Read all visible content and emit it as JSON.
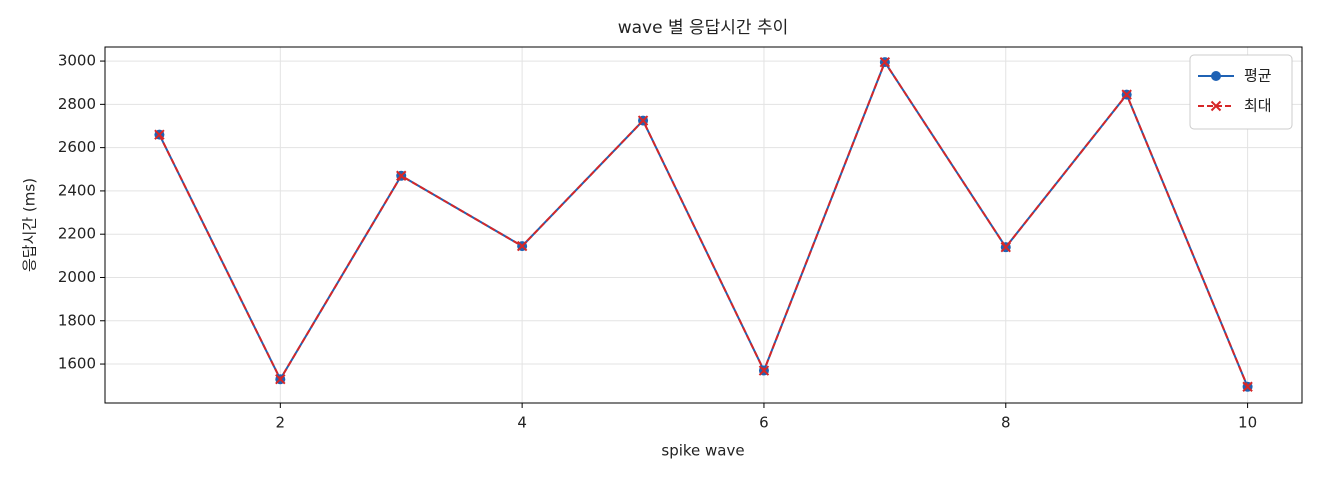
{
  "chart_data": {
    "type": "line",
    "title": "wave 별 응답시간 추이",
    "x_label": "spike wave",
    "y_label": "응답시간 (ms)",
    "x": [
      1,
      2,
      3,
      4,
      5,
      6,
      7,
      8,
      9,
      10
    ],
    "series": [
      {
        "name": "평균",
        "color": "#1f62b4",
        "marker": "circle",
        "dash": false,
        "values": [
          2660,
          1530,
          2470,
          2145,
          2725,
          1570,
          2995,
          2140,
          2845,
          1495
        ]
      },
      {
        "name": "최대",
        "color": "#d62728",
        "marker": "x",
        "dash": true,
        "values": [
          2660,
          1530,
          2470,
          2145,
          2725,
          1570,
          2995,
          2140,
          2845,
          1495
        ]
      }
    ],
    "xlim": [
      0.55,
      10.45
    ],
    "ylim": [
      1420,
      3065
    ],
    "xticks": [
      2,
      4,
      6,
      8,
      10
    ],
    "yticks": [
      1600,
      1800,
      2000,
      2200,
      2400,
      2600,
      2800,
      3000
    ],
    "grid": true,
    "legend": "upper right"
  }
}
